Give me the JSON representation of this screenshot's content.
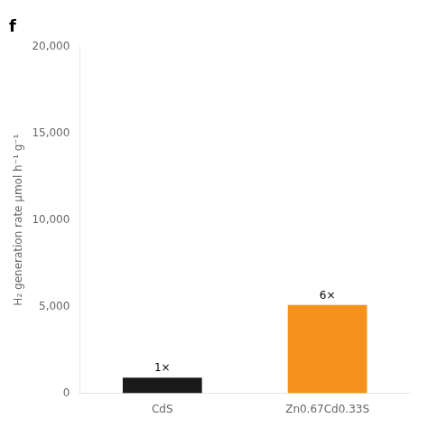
{
  "chart_data": {
    "type": "bar",
    "title": "f",
    "categories": [
      "CdS",
      "Zn0.67Cd0.33S"
    ],
    "values": [
      900,
      5100
    ],
    "colors": [
      "#1a1a1a",
      "#F5921E"
    ],
    "annotations": [
      "1×",
      "6×"
    ],
    "ylabel": "H₂ generation rate μmol h⁻¹ g⁻¹",
    "ylim": [
      0,
      20000
    ],
    "yticks": [
      0,
      {
        "value": 5000,
        "label": "5,000"
      },
      {
        "value": 10000,
        "label": "10,000"
      },
      {
        "value": 15000,
        "label": "15,000"
      },
      {
        "value": 20000,
        "label": "20,000"
      }
    ],
    "grid": false
  }
}
